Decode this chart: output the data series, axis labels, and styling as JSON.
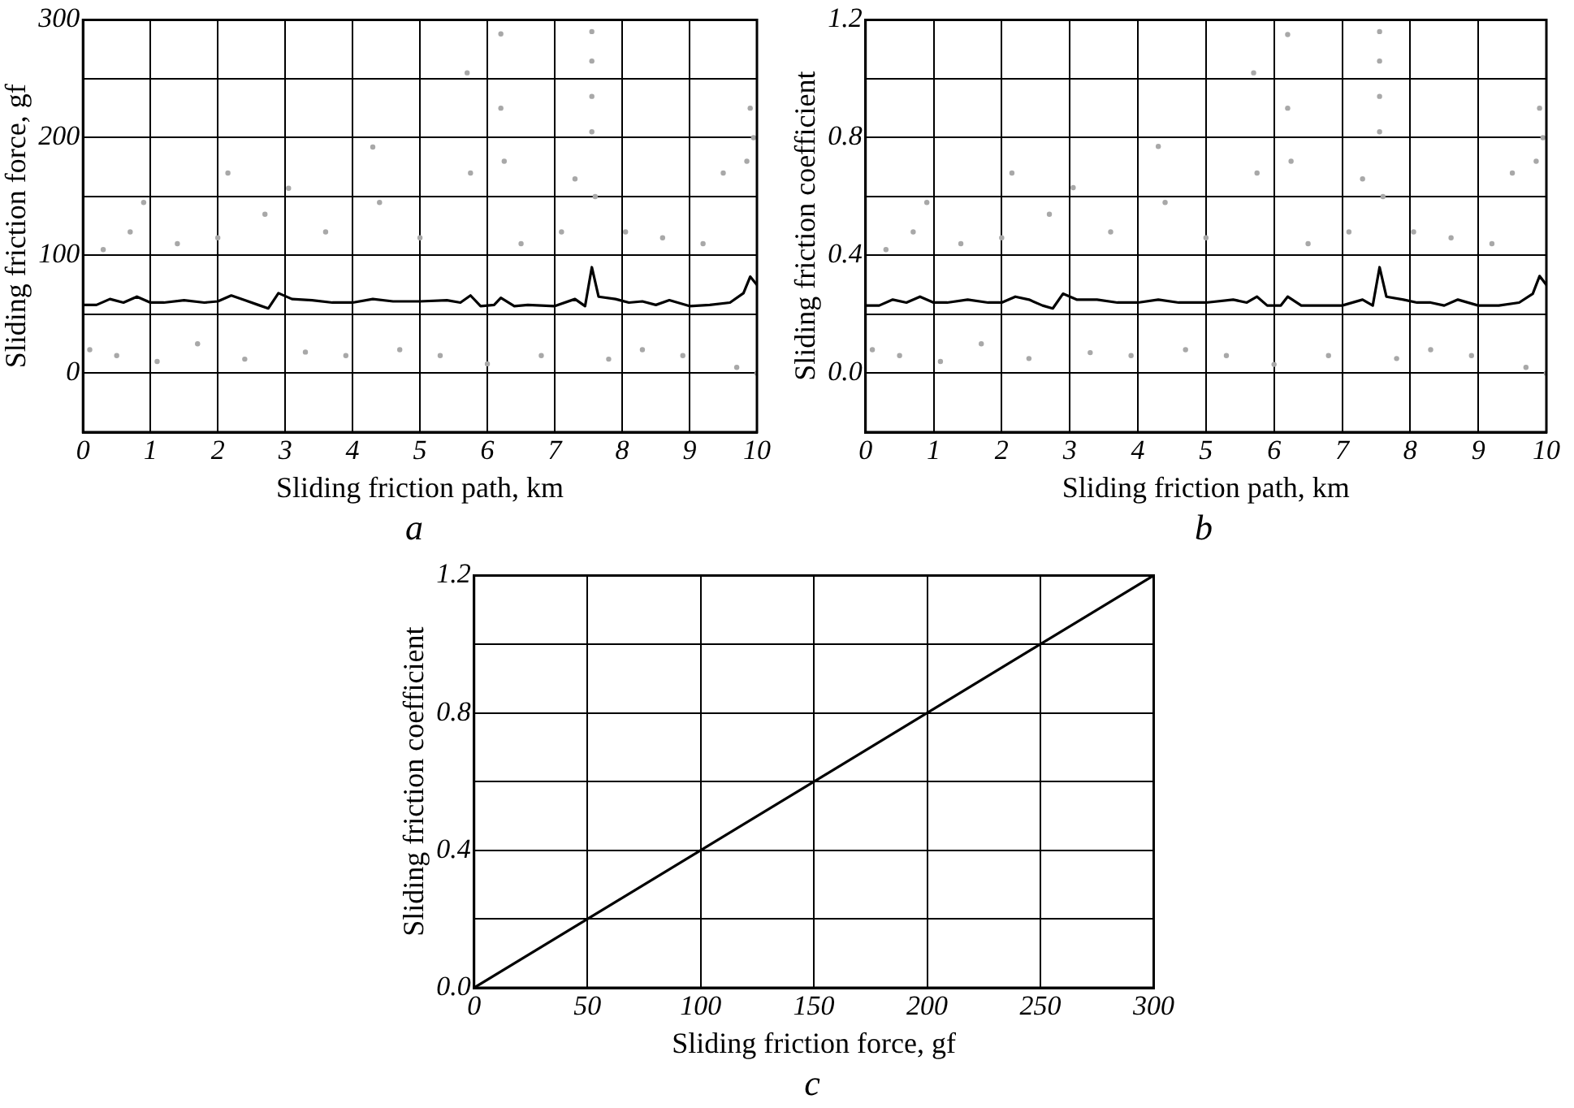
{
  "chart_data": [
    {
      "type": "scatter",
      "xlabel": "Sliding friction path, km",
      "ylabel": "Sliding friction force, gf",
      "annotations": [
        "a"
      ],
      "xlim": [
        0,
        10
      ],
      "xticks": [
        0,
        1,
        2,
        3,
        4,
        5,
        6,
        7,
        8,
        9,
        10
      ],
      "ylim": [
        -50,
        300
      ],
      "yticks": [
        {
          "value": -50,
          "label": null
        },
        0,
        {
          "value": 50,
          "label": null
        },
        100,
        {
          "value": 150,
          "label": null
        },
        200,
        {
          "value": 250,
          "label": null
        },
        300
      ],
      "grid": true,
      "legend": false,
      "series": [
        {
          "marker": "circle",
          "color": "#a8a8a8",
          "x": [
            0.1,
            0.3,
            0.5,
            0.7,
            0.9,
            1.1,
            1.4,
            1.7,
            2.0,
            2.15,
            2.4,
            2.7,
            3.05,
            3.3,
            3.6,
            3.9,
            4.3,
            4.4,
            4.7,
            5.0,
            5.3,
            5.7,
            5.75,
            6.0,
            6.2,
            6.2,
            6.25,
            6.5,
            6.8,
            7.1,
            7.3,
            7.55,
            7.55,
            7.55,
            7.55,
            7.6,
            7.8,
            8.05,
            8.3,
            8.6,
            8.9,
            9.2,
            9.5,
            9.7,
            9.85,
            9.9,
            9.95,
            10
          ],
          "values": [
            20,
            105,
            15,
            120,
            145,
            10,
            110,
            25,
            115,
            170,
            12,
            135,
            157,
            18,
            120,
            15,
            192,
            145,
            20,
            115,
            15,
            255,
            170,
            8,
            288,
            225,
            180,
            110,
            15,
            120,
            165,
            290,
            265,
            235,
            205,
            150,
            12,
            120,
            20,
            115,
            15,
            110,
            170,
            5,
            180,
            225,
            200,
            0
          ]
        },
        {
          "type": "line",
          "color": "#000000",
          "x": [
            0,
            0.2,
            0.4,
            0.6,
            0.8,
            1.0,
            1.2,
            1.5,
            1.8,
            2.0,
            2.2,
            2.4,
            2.6,
            2.75,
            2.9,
            3.1,
            3.4,
            3.7,
            4.0,
            4.3,
            4.6,
            5.0,
            5.4,
            5.6,
            5.75,
            5.9,
            6.1,
            6.2,
            6.4,
            6.6,
            7.0,
            7.3,
            7.45,
            7.55,
            7.65,
            7.9,
            8.1,
            8.3,
            8.5,
            8.7,
            9.0,
            9.3,
            9.6,
            9.8,
            9.9,
            10
          ],
          "values": [
            58,
            58,
            63,
            60,
            65,
            60,
            60,
            62,
            60,
            61,
            66,
            62,
            58,
            55,
            68,
            63,
            62,
            60,
            60,
            63,
            61,
            61,
            62,
            60,
            66,
            57,
            58,
            64,
            57,
            58,
            57,
            63,
            57,
            90,
            65,
            63,
            60,
            61,
            58,
            62,
            57,
            58,
            60,
            68,
            82,
            75
          ]
        }
      ]
    },
    {
      "type": "scatter",
      "xlabel": "Sliding friction path, km",
      "ylabel": "Sliding friction coefficient",
      "annotations": [
        "b"
      ],
      "xlim": [
        0,
        10
      ],
      "xticks": [
        0,
        1,
        2,
        3,
        4,
        5,
        6,
        7,
        8,
        9,
        10
      ],
      "ylim": [
        -0.2,
        1.2
      ],
      "yticks": [
        {
          "value": -0.2,
          "label": null
        },
        "0.0",
        {
          "value": 0.2,
          "label": null
        },
        0.4,
        {
          "value": 0.6,
          "label": null
        },
        0.8,
        {
          "value": 1.0,
          "label": null
        },
        1.2
      ],
      "grid": true,
      "legend": false,
      "series": [
        {
          "marker": "circle",
          "color": "#a8a8a8",
          "x": [
            0.1,
            0.3,
            0.5,
            0.7,
            0.9,
            1.1,
            1.4,
            1.7,
            2.0,
            2.15,
            2.4,
            2.7,
            3.05,
            3.3,
            3.6,
            3.9,
            4.3,
            4.4,
            4.7,
            5.0,
            5.3,
            5.7,
            5.75,
            6.0,
            6.2,
            6.2,
            6.25,
            6.5,
            6.8,
            7.1,
            7.3,
            7.55,
            7.55,
            7.55,
            7.55,
            7.6,
            7.8,
            8.05,
            8.3,
            8.6,
            8.9,
            9.2,
            9.5,
            9.7,
            9.85,
            9.9,
            9.95,
            10
          ],
          "values": [
            0.08,
            0.42,
            0.06,
            0.48,
            0.58,
            0.04,
            0.44,
            0.1,
            0.46,
            0.68,
            0.05,
            0.54,
            0.63,
            0.07,
            0.48,
            0.06,
            0.77,
            0.58,
            0.08,
            0.46,
            0.06,
            1.02,
            0.68,
            0.03,
            1.15,
            0.9,
            0.72,
            0.44,
            0.06,
            0.48,
            0.66,
            1.16,
            1.06,
            0.94,
            0.82,
            0.6,
            0.05,
            0.48,
            0.08,
            0.46,
            0.06,
            0.44,
            0.68,
            0.02,
            0.72,
            0.9,
            0.8,
            0.0
          ]
        },
        {
          "type": "line",
          "color": "#000000",
          "x": [
            0,
            0.2,
            0.4,
            0.6,
            0.8,
            1.0,
            1.2,
            1.5,
            1.8,
            2.0,
            2.2,
            2.4,
            2.6,
            2.75,
            2.9,
            3.1,
            3.4,
            3.7,
            4.0,
            4.3,
            4.6,
            5.0,
            5.4,
            5.6,
            5.75,
            5.9,
            6.1,
            6.2,
            6.4,
            6.6,
            7.0,
            7.3,
            7.45,
            7.55,
            7.65,
            7.9,
            8.1,
            8.3,
            8.5,
            8.7,
            9.0,
            9.3,
            9.6,
            9.8,
            9.9,
            10
          ],
          "values": [
            0.23,
            0.23,
            0.25,
            0.24,
            0.26,
            0.24,
            0.24,
            0.25,
            0.24,
            0.24,
            0.26,
            0.25,
            0.23,
            0.22,
            0.27,
            0.25,
            0.25,
            0.24,
            0.24,
            0.25,
            0.24,
            0.24,
            0.25,
            0.24,
            0.26,
            0.23,
            0.23,
            0.26,
            0.23,
            0.23,
            0.23,
            0.25,
            0.23,
            0.36,
            0.26,
            0.25,
            0.24,
            0.24,
            0.23,
            0.25,
            0.23,
            0.23,
            0.24,
            0.27,
            0.33,
            0.3
          ]
        }
      ]
    },
    {
      "type": "line",
      "xlabel": "Sliding friction force, gf",
      "ylabel": "Sliding friction coefficient",
      "annotations": [
        "c"
      ],
      "xlim": [
        0,
        300
      ],
      "xticks": [
        0,
        50,
        100,
        150,
        200,
        250,
        300
      ],
      "ylim": [
        0,
        1.2
      ],
      "yticks": [
        "0.0",
        {
          "value": 0.2,
          "label": null
        },
        0.4,
        {
          "value": 0.6,
          "label": null
        },
        0.8,
        {
          "value": 1.0,
          "label": null
        },
        1.2
      ],
      "grid": true,
      "legend": false,
      "marker": "none",
      "series": [
        {
          "color": "#000000",
          "x": [
            0,
            300
          ],
          "values": [
            0,
            1.2
          ]
        }
      ]
    }
  ]
}
